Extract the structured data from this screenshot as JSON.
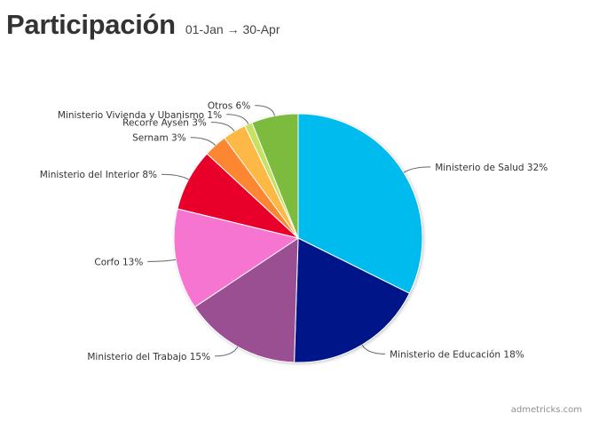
{
  "header": {
    "title": "Participación",
    "subtitle": "01-Jan → 30-Apr"
  },
  "credit": "admetricks.com",
  "chart_data": {
    "type": "pie",
    "title": "Participación",
    "subtitle": "01-Jan → 30-Apr",
    "slices": [
      {
        "name": "Ministerio de Salud",
        "value": 32,
        "label": "Ministerio de Salud 32%",
        "color": "#06bbee"
      },
      {
        "name": "Ministerio de Educación",
        "value": 18,
        "label": "Ministerio de Educación 18%",
        "color": "#031888"
      },
      {
        "name": "Ministerio del Trabajo",
        "value": 15,
        "label": "Ministerio del Trabajo 15%",
        "color": "#9b4f93"
      },
      {
        "name": "Corfo",
        "value": 13,
        "label": "Corfo 13%",
        "color": "#f575d0"
      },
      {
        "name": "Ministerio del Interior",
        "value": 8,
        "label": "Ministerio del Interior 8%",
        "color": "#e8062b"
      },
      {
        "name": "Sernam",
        "value": 3,
        "label": "Sernam 3%",
        "color": "#fd8633"
      },
      {
        "name": "Recorre Aysén",
        "value": 3,
        "label": "Recorre Aysén 3%",
        "color": "#fdb845"
      },
      {
        "name": "Ministerio Vivienda y Ubanismo",
        "value": 1,
        "label": "Ministerio Vivienda y Ubanismo 1%",
        "color": "#c7e162"
      },
      {
        "name": "Otros",
        "value": 6,
        "label": "Otros 6%",
        "color": "#7cbb3c"
      }
    ]
  }
}
